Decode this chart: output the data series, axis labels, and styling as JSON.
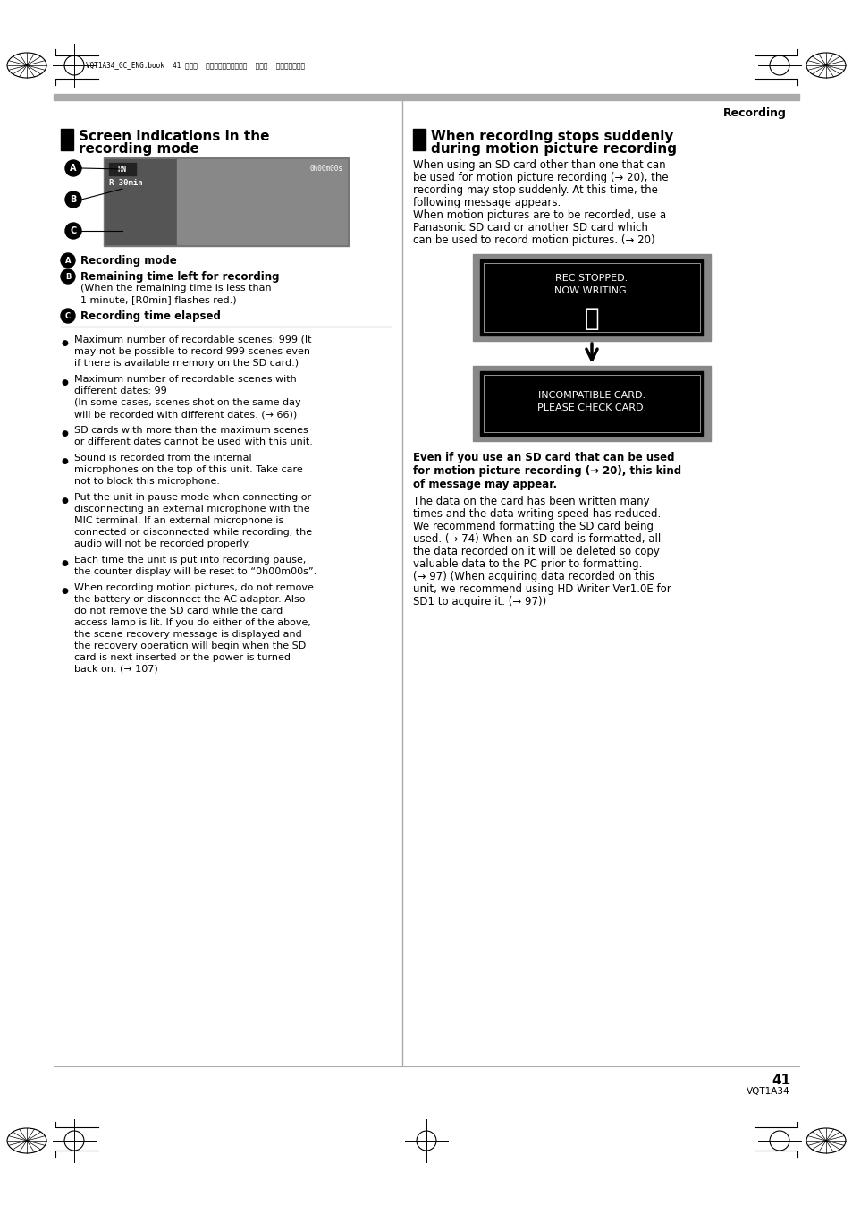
{
  "page_bg": "#ffffff",
  "header_text": "Recording",
  "footer_num": "41",
  "footer_code": "VQT1A34",
  "header_meta": "VQT1A34_GC_ENG.book  41 ページ  ２００７年１月２７日  土曜日  午後１時４６分",
  "section1_title_line1": "Screen indications in the",
  "section1_title_line2": "recording mode",
  "section2_title_line1": "When recording stops suddenly",
  "section2_title_line2": "during motion picture recording",
  "section2_body": "When using an SD card other than one that can\nbe used for motion picture recording (→ 20), the\nrecording may stop suddenly. At this time, the\nfollowing message appears.\nWhen motion pictures are to be recorded, use a\nPanasonic SD card or another SD card which\ncan be used to record motion pictures. (→ 20)",
  "label_A_text": "Recording mode",
  "label_B_text": "Remaining time left for recording",
  "label_B2_text": "(When the remaining time is less than\n1 minute, [R0min] flashes red.)",
  "label_C_text": "Recording time elapsed",
  "bullets": [
    "Maximum number of recordable scenes: 999 (It\nmay not be possible to record 999 scenes even\nif there is available memory on the SD card.)",
    "Maximum number of recordable scenes with\ndifferent dates: 99\n(In some cases, scenes shot on the same day\nwill be recorded with different dates. (→ 66))",
    "SD cards with more than the maximum scenes\nor different dates cannot be used with this unit.",
    "Sound is recorded from the internal\nmicrophones on the top of this unit. Take care\nnot to block this microphone.",
    "Put the unit in pause mode when connecting or\ndisconnecting an external microphone with the\nMIC terminal. If an external microphone is\nconnected or disconnected while recording, the\naudio will not be recorded properly.",
    "Each time the unit is put into recording pause,\nthe counter display will be reset to “0h00m00s”.",
    "When recording motion pictures, do not remove\nthe battery or disconnect the AC adaptor. Also\ndo not remove the SD card while the card\naccess lamp is lit. If you do either of the above,\nthe scene recovery message is displayed and\nthe recovery operation will begin when the SD\ncard is next inserted or the power is turned\nback on. (→ 107)"
  ],
  "box1_line1": "REC STOPPED.",
  "box1_line2": "NOW WRITING.",
  "box2_line1": "INCOMPATIBLE CARD.",
  "box2_line2": "PLEASE CHECK CARD.",
  "bold_notice": "Even if you use an SD card that can be used\nfor motion picture recording (→ 20), this kind\nof message may appear.",
  "body2": "The data on the card has been written many\ntimes and the data writing speed has reduced.\nWe recommend formatting the SD card being\nused. (→ 74) When an SD card is formatted, all\nthe data recorded on it will be deleted so copy\nvaluable data to the PC prior to formatting.\n(→ 97) (When acquiring data recorded on this\nunit, we recommend using HD Writer Ver1.0E for\nSD1 to acquire it. (→ 97))"
}
